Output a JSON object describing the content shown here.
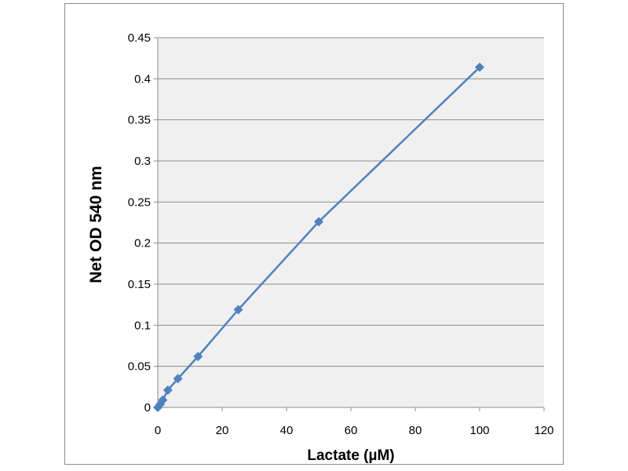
{
  "chart_data": {
    "type": "scatter",
    "title": "",
    "xlabel": "Lactate (µM)",
    "ylabel": "Net OD 540 nm",
    "xlim": [
      0,
      120
    ],
    "ylim": [
      0,
      0.45
    ],
    "x_ticks": [
      "0",
      "20",
      "40",
      "60",
      "80",
      "100",
      "120"
    ],
    "y_ticks": [
      "0",
      "0.05",
      "0.1",
      "0.15",
      "0.2",
      "0.25",
      "0.3",
      "0.35",
      "0.4",
      "0.45"
    ],
    "grid": true,
    "legend": "none",
    "series": [
      {
        "color": "#4f81bd",
        "marker": "diamond",
        "line": "straight",
        "points": [
          {
            "x": 0,
            "y": 0
          },
          {
            "x": 0.78,
            "y": 0.004
          },
          {
            "x": 1.56,
            "y": 0.009
          },
          {
            "x": 3.13,
            "y": 0.021
          },
          {
            "x": 6.25,
            "y": 0.035
          },
          {
            "x": 12.5,
            "y": 0.062
          },
          {
            "x": 25,
            "y": 0.119
          },
          {
            "x": 50,
            "y": 0.226
          },
          {
            "x": 100,
            "y": 0.414
          }
        ]
      }
    ],
    "plot_background": "#f0f0f0",
    "grid_color": "#8c8c8c"
  }
}
